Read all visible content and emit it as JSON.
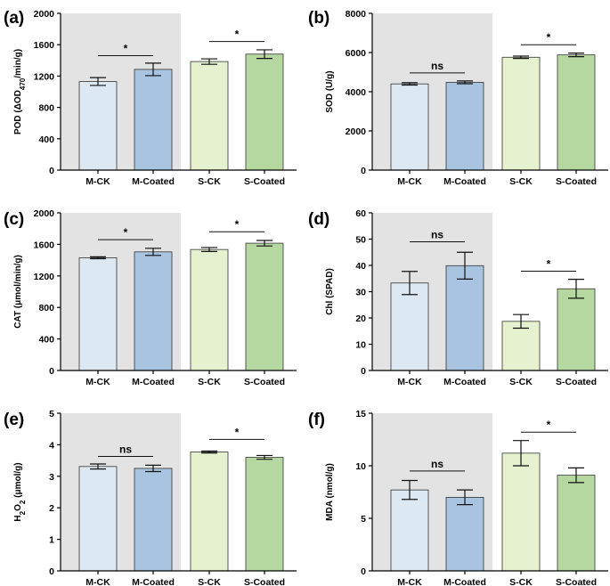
{
  "colors": {
    "m_ck": "#dde9f2",
    "m_coated": "#a9c4e0",
    "s_ck": "#e6f1cf",
    "s_coated": "#b5d8a0",
    "shade": "#e3e3e3",
    "bar_edge": "#333333",
    "axis": "#000000"
  },
  "chart_data": [
    {
      "type": "bar",
      "panel_label": "(a)",
      "ylabel": "POD (ΔOD470/min/g)",
      "ylabel_parts": {
        "pre": "POD (ΔOD",
        "sub": "470",
        "post": "/min/g)"
      },
      "categories": [
        "M-CK",
        "M-Coated",
        "S-CK",
        "S-Coated"
      ],
      "values": [
        1130,
        1285,
        1385,
        1480
      ],
      "errors": [
        50,
        80,
        35,
        55
      ],
      "ylim": [
        0,
        2000
      ],
      "yticks": [
        "0",
        "400",
        "800",
        "1200",
        "1600",
        "2000"
      ],
      "yticks_values": [
        0,
        400,
        800,
        1200,
        1600,
        2000
      ],
      "shaded_group": "M",
      "significance": [
        {
          "pair": [
            0,
            1
          ],
          "label": "*",
          "y": 1460
        },
        {
          "pair": [
            2,
            3
          ],
          "label": "*",
          "y": 1640
        }
      ]
    },
    {
      "type": "bar",
      "panel_label": "(b)",
      "ylabel": "SOD (U/g)",
      "categories": [
        "M-CK",
        "M-Coated",
        "S-CK",
        "S-Coated"
      ],
      "values": [
        4400,
        4480,
        5760,
        5880
      ],
      "errors": [
        60,
        70,
        60,
        90
      ],
      "ylim": [
        0,
        8000
      ],
      "yticks": [
        "0",
        "2000",
        "4000",
        "6000",
        "8000"
      ],
      "yticks_values": [
        0,
        2000,
        4000,
        6000,
        8000
      ],
      "shaded_group": "M",
      "significance": [
        {
          "pair": [
            0,
            1
          ],
          "label": "ns",
          "y": 4960
        },
        {
          "pair": [
            2,
            3
          ],
          "label": "*",
          "y": 6400
        }
      ]
    },
    {
      "type": "bar",
      "panel_label": "(c)",
      "ylabel": "CAT (μmol/min/g)",
      "categories": [
        "M-CK",
        "M-Coated",
        "S-CK",
        "S-Coated"
      ],
      "values": [
        1430,
        1505,
        1535,
        1615
      ],
      "errors": [
        12,
        45,
        25,
        35
      ],
      "ylim": [
        0,
        2000
      ],
      "yticks": [
        "0",
        "400",
        "800",
        "1200",
        "1600",
        "2000"
      ],
      "yticks_values": [
        0,
        400,
        800,
        1200,
        1600,
        2000
      ],
      "shaded_group": "M",
      "significance": [
        {
          "pair": [
            0,
            1
          ],
          "label": "*",
          "y": 1660
        },
        {
          "pair": [
            2,
            3
          ],
          "label": "*",
          "y": 1760
        }
      ]
    },
    {
      "type": "bar",
      "panel_label": "(d)",
      "ylabel": "Chl (SPAD)",
      "categories": [
        "M-CK",
        "M-Coated",
        "S-CK",
        "S-Coated"
      ],
      "values": [
        33.3,
        39.9,
        18.7,
        31.1
      ],
      "errors": [
        4.4,
        5.1,
        2.6,
        3.6
      ],
      "ylim": [
        0,
        60
      ],
      "yticks": [
        "0",
        "10",
        "20",
        "30",
        "40",
        "50",
        "60"
      ],
      "yticks_values": [
        0,
        10,
        20,
        30,
        40,
        50,
        60
      ],
      "shaded_group": "M",
      "significance": [
        {
          "pair": [
            0,
            1
          ],
          "label": "ns",
          "y": 49
        },
        {
          "pair": [
            2,
            3
          ],
          "label": "*",
          "y": 37.8
        }
      ]
    },
    {
      "type": "bar",
      "panel_label": "(e)",
      "ylabel": "H2O2 (μmol/g)",
      "ylabel_parts": {
        "pre": "H",
        "sub": "2",
        "mid": "O",
        "sub2": "2",
        "post": " (μmol/g)"
      },
      "categories": [
        "M-CK",
        "M-Coated",
        "S-CK",
        "S-Coated"
      ],
      "values": [
        3.31,
        3.25,
        3.77,
        3.6
      ],
      "errors": [
        0.08,
        0.1,
        0.03,
        0.06
      ],
      "ylim": [
        0,
        5
      ],
      "yticks": [
        "0",
        "1",
        "2",
        "3",
        "4",
        "5"
      ],
      "yticks_values": [
        0,
        1,
        2,
        3,
        4,
        5
      ],
      "shaded_group": "M",
      "significance": [
        {
          "pair": [
            0,
            1
          ],
          "label": "ns",
          "y": 3.63
        },
        {
          "pair": [
            2,
            3
          ],
          "label": "*",
          "y": 4.17
        }
      ]
    },
    {
      "type": "bar",
      "panel_label": "(f)",
      "ylabel": "MDA (nmol/g)",
      "categories": [
        "M-CK",
        "M-Coated",
        "S-CK",
        "S-Coated"
      ],
      "values": [
        7.7,
        7.0,
        11.2,
        9.1
      ],
      "errors": [
        0.9,
        0.7,
        1.2,
        0.7
      ],
      "ylim": [
        0,
        15
      ],
      "yticks": [
        "0",
        "5",
        "10",
        "15"
      ],
      "yticks_values": [
        0,
        5,
        10,
        15
      ],
      "shaded_group": "M",
      "significance": [
        {
          "pair": [
            0,
            1
          ],
          "label": "ns",
          "y": 9.5
        },
        {
          "pair": [
            2,
            3
          ],
          "label": "*",
          "y": 13.2
        }
      ]
    }
  ]
}
